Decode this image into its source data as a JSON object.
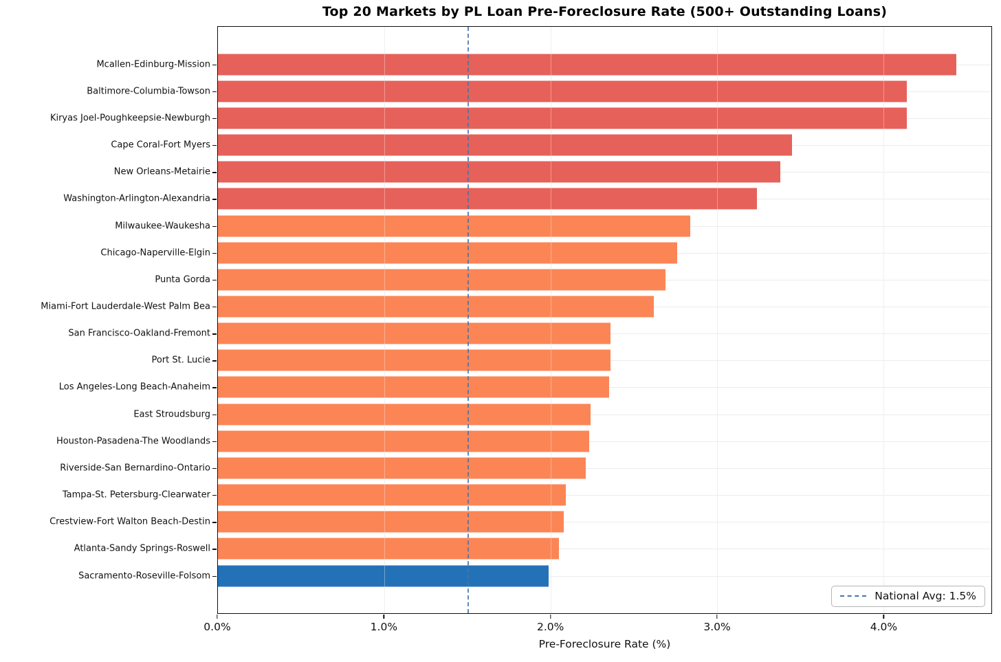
{
  "chart_data": {
    "type": "bar",
    "orientation": "horizontal",
    "title": "Top 20 Markets by PL Loan Pre-Foreclosure Rate (500+ Outstanding Loans)",
    "xlabel": "Pre-Foreclosure Rate (%)",
    "ylabel": "",
    "xlim": [
      0,
      4.65
    ],
    "grid": true,
    "categories": [
      "Mcallen-Edinburg-Mission",
      "Baltimore-Columbia-Towson",
      "Kiryas Joel-Poughkeepsie-Newburgh",
      "Cape Coral-Fort Myers",
      "New Orleans-Metairie",
      "Washington-Arlington-Alexandria",
      "Milwaukee-Waukesha",
      "Chicago-Naperville-Elgin",
      "Punta Gorda",
      "Miami-Fort Lauderdale-West Palm Bea",
      "San Francisco-Oakland-Fremont",
      "Port St. Lucie",
      "Los Angeles-Long Beach-Anaheim",
      "East Stroudsburg",
      "Houston-Pasadena-The Woodlands",
      "Riverside-San Bernardino-Ontario",
      "Tampa-St. Petersburg-Clearwater",
      "Crestview-Fort Walton Beach-Destin",
      "Atlanta-Sandy Springs-Roswell",
      "Sacramento-Roseville-Folsom"
    ],
    "values": [
      4.44,
      4.14,
      4.14,
      3.45,
      3.38,
      3.24,
      2.84,
      2.76,
      2.69,
      2.62,
      2.36,
      2.36,
      2.35,
      2.24,
      2.23,
      2.21,
      2.09,
      2.08,
      2.05,
      1.99
    ],
    "bar_colors": [
      "#e6615a",
      "#e6615a",
      "#e6615a",
      "#e6615a",
      "#e6615a",
      "#e6615a",
      "#fc8555",
      "#fc8555",
      "#fc8555",
      "#fc8555",
      "#fc8555",
      "#fc8555",
      "#fc8555",
      "#fc8555",
      "#fc8555",
      "#fc8555",
      "#fc8555",
      "#fc8555",
      "#fc8555",
      "#2372b8"
    ],
    "xticks": [
      {
        "value": 0,
        "label": "0.0%"
      },
      {
        "value": 1,
        "label": "1.0%"
      },
      {
        "value": 2,
        "label": "2.0%"
      },
      {
        "value": 3,
        "label": "3.0%"
      },
      {
        "value": 4,
        "label": "4.0%"
      }
    ],
    "reference_line": {
      "value": 1.5,
      "label": "National Avg: 1.5%",
      "color": "#4674ae",
      "style": "dashed"
    },
    "legend": {
      "position": "lower right",
      "entries": [
        {
          "label": "National Avg: 1.5%",
          "line_style": "dashed",
          "color": "#4674ae"
        }
      ]
    }
  },
  "colors": {
    "bar_red": "#e6615a",
    "bar_orange": "#fc8555",
    "bar_blue": "#2372b8",
    "reference_blue": "#4674ae",
    "gridline": "#e7e7e7",
    "spine": "#0d0d0d"
  }
}
